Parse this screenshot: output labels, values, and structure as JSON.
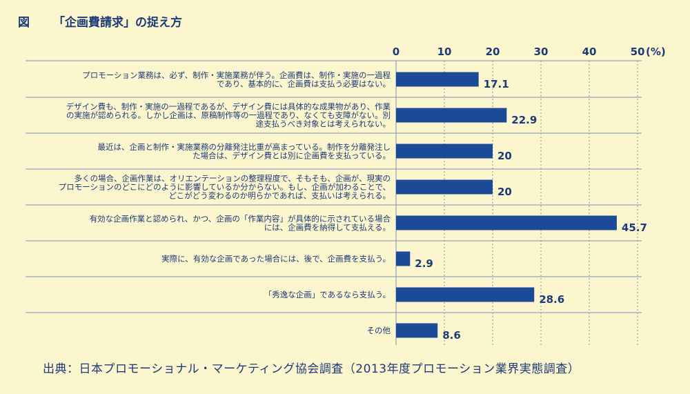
{
  "title": {
    "figure_label": "図",
    "text": "「企画費請求」の捉え方"
  },
  "source": "出典：日本プロモーショナル・マーケティング協会調査（2013年度プロモーション業界実態調査）",
  "colors": {
    "background": "#fcf6cf",
    "bar": "#1c4a96",
    "text": "#1c3a78",
    "grid": "#7e8fb8"
  },
  "chart_data": {
    "type": "bar",
    "orientation": "horizontal",
    "xlim": [
      0,
      50
    ],
    "xticks": [
      "0",
      "10",
      "20",
      "30",
      "40",
      "50"
    ],
    "unit_label": "(%)",
    "grid": true,
    "categories": [
      [
        "プロモーション業務は、必ず、制作・実施業務が伴う。企画費は、制作・実施の一過程",
        "であり、基本的に、企画費は支払う必要はない。"
      ],
      [
        "デザイン費も、制作・実施の一過程であるが、デザイン費には具体的な成果物があり、作業",
        "の実施が認められる。しかし企画は、原稿制作等の一過程であり、なくても支障がない。別",
        "途支払うべき対象とは考えられない。"
      ],
      [
        "最近は、企画と制作・実施業務の分離発注比重が高まっている。制作を分離発注し",
        "た場合は、デザイン費とは別に企画費を支払っている。"
      ],
      [
        "多くの場合、企画作業は、オリエンテーションの整理程度で、そもそも、企画が、現実の",
        "プロモーションのどこにどのように影響しているか分からない。もし、企画が加わることで、",
        "どこがどう変わるのか明らかであれば、支払いは考えられる。"
      ],
      [
        "有効な企画作業と認められ、かつ、企画の「作業内容」が具体的に示されている場合",
        "には、企画費を納得して支払える。"
      ],
      [
        "実際に、有効な企画であった場合には、後で、企画費を支払う。"
      ],
      [
        "「秀逸な企画」であるなら支払う。"
      ],
      [
        "その他"
      ]
    ],
    "values": [
      17.1,
      22.9,
      20,
      20,
      45.7,
      2.9,
      28.6,
      8.6
    ],
    "value_labels": [
      "17.1",
      "22.9",
      "20",
      "20",
      "45.7",
      "2.9",
      "28.6",
      "8.6"
    ]
  }
}
